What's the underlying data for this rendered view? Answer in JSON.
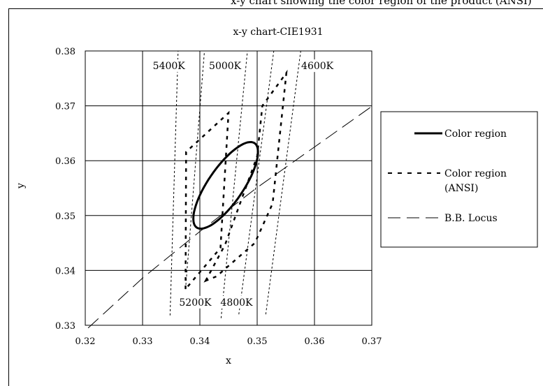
{
  "page": {
    "cut_caption": "x-y chart showing the color region of the product (ANSI)"
  },
  "chart_data": {
    "type": "line",
    "title": "x-y chart-CIE1931",
    "xlabel": "x",
    "ylabel": "y",
    "xlim": [
      0.32,
      0.37
    ],
    "ylim": [
      0.33,
      0.38
    ],
    "x_ticks": [
      "0.32",
      "0.33",
      "0.34",
      "0.35",
      "0.36",
      "0.37"
    ],
    "y_ticks": [
      "0.33",
      "0.34",
      "0.35",
      "0.36",
      "0.37",
      "0.38"
    ],
    "grid": true,
    "legend_position": "right",
    "legend": [
      "Color region",
      "Color region\n(ANSI)",
      "B.B. Locus"
    ],
    "series": [
      {
        "name": "Color region",
        "style": "solid-thick",
        "ellipse": {
          "center": [
            0.3445,
            0.3555
          ],
          "semi_axes": [
            0.0092,
            0.0031
          ],
          "angle_deg": 57
        }
      },
      {
        "name": "Color region\n(ANSI)",
        "style": "dashed-thick",
        "polygons": [
          [
            [
              0.3375,
              0.3366
            ],
            [
              0.3376,
              0.3616
            ],
            [
              0.345,
              0.3687
            ],
            [
              0.3436,
              0.3441
            ]
          ],
          [
            [
              0.341,
              0.3381
            ],
            [
              0.3444,
              0.3447
            ],
            [
              0.35,
              0.3608
            ],
            [
              0.3509,
              0.37
            ],
            [
              0.3551,
              0.376
            ],
            [
              0.3527,
              0.3522
            ],
            [
              0.3496,
              0.345
            ],
            [
              0.3429,
              0.3389
            ]
          ]
        ]
      },
      {
        "name": "B.B. Locus",
        "style": "long-dash",
        "x": [
          0.3205,
          0.33,
          0.34,
          0.35,
          0.36,
          0.37
        ],
        "y": [
          0.3295,
          0.3386,
          0.3471,
          0.3551,
          0.3625,
          0.3699
        ]
      }
    ],
    "cct_lines": [
      {
        "label": "5400K",
        "from": [
          0.3348,
          0.3318
        ],
        "to": [
          0.3362,
          0.38
        ]
      },
      {
        "label": "5200K",
        "from": [
          0.3375,
          0.3366
        ],
        "to": [
          0.3408,
          0.38
        ]
      },
      {
        "label": "5000K",
        "from": [
          0.3437,
          0.3313
        ],
        "to": [
          0.3483,
          0.38
        ]
      },
      {
        "label": "4800K",
        "from": [
          0.3468,
          0.332
        ],
        "to": [
          0.3529,
          0.38
        ]
      },
      {
        "label": "4600K",
        "from": [
          0.3515,
          0.332
        ],
        "to": [
          0.3576,
          0.38
        ]
      }
    ],
    "annotations": [
      {
        "text": "5400K",
        "x": 0.3346,
        "y": 0.3768
      },
      {
        "text": "5000K",
        "x": 0.3444,
        "y": 0.3768
      },
      {
        "text": "4600K",
        "x": 0.3605,
        "y": 0.3768
      },
      {
        "text": "5200K",
        "x": 0.3392,
        "y": 0.3337
      },
      {
        "text": "4800K",
        "x": 0.3464,
        "y": 0.3337
      }
    ]
  }
}
